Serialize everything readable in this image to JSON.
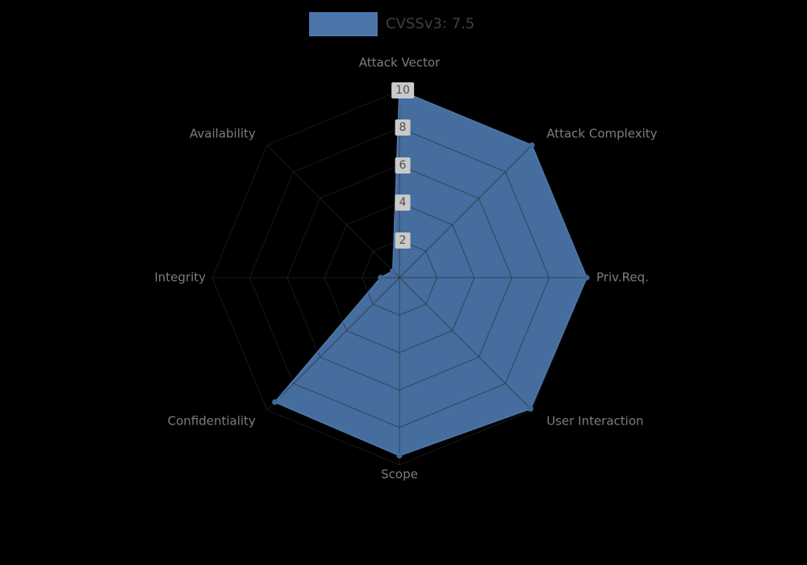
{
  "legend": {
    "label": "CVSSv3: 7.5",
    "position": "top-center"
  },
  "chart_data": {
    "type": "radar",
    "title": "",
    "legend_label": "CVSSv3: 7.5",
    "categories": [
      "Attack Vector",
      "Attack Complexity",
      "Priv.Req.",
      "User Interaction",
      "Scope",
      "Confidentiality",
      "Integrity",
      "Availability"
    ],
    "values": [
      10,
      10,
      10,
      9.9,
      9.5,
      9.4,
      1,
      0.5
    ],
    "ticks": [
      2,
      4,
      6,
      8,
      10
    ],
    "max": 10,
    "ylim": [
      0,
      10
    ],
    "grid": true,
    "start_axis": "top",
    "direction": "clockwise",
    "colors": {
      "background": "#000000",
      "series_fill": "#4b76aa",
      "series_stroke": "#4b76aa",
      "series_marker": "#3e6897",
      "grid": "#2a2a2a",
      "axis_label": "#7d7d7d",
      "tick_box": "#c9c9c9",
      "tick_text": "#4e4e4e",
      "legend_text": "#3f3f3f"
    }
  }
}
